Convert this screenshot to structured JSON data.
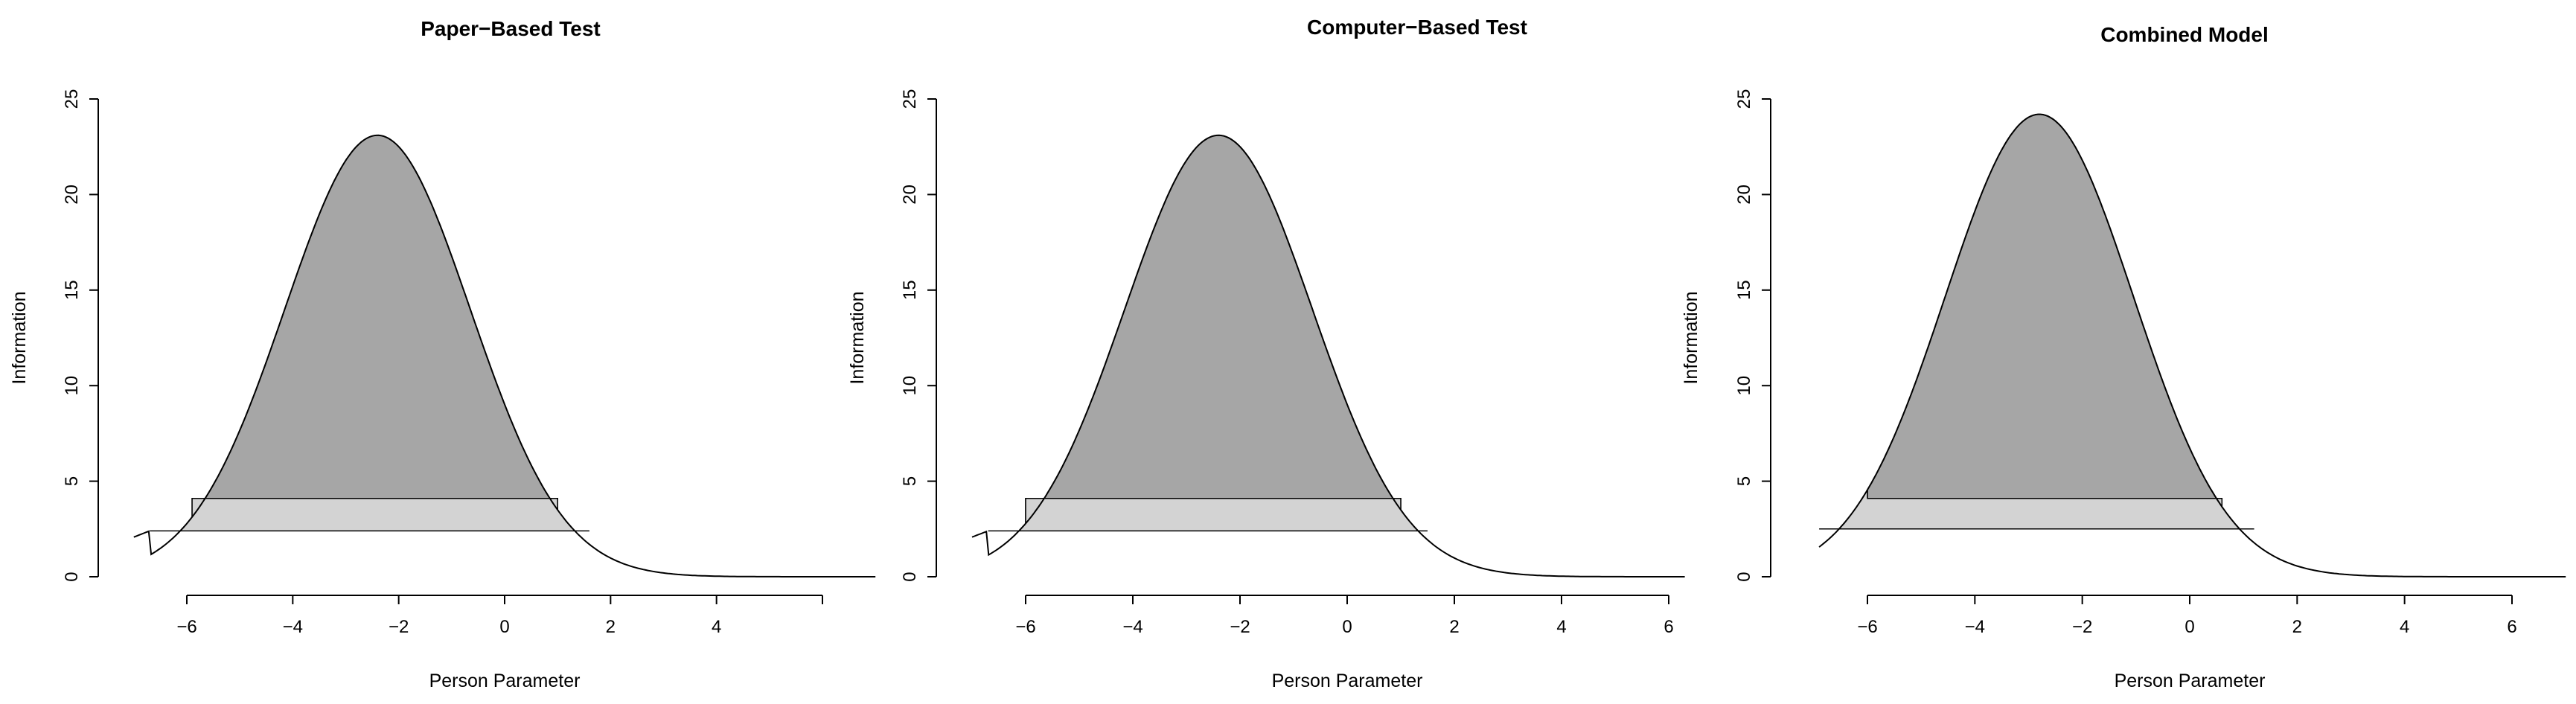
{
  "chart_data": [
    {
      "type": "area",
      "title": "Paper−Based Test",
      "xlabel": "Person Parameter",
      "ylabel": "Information",
      "x_ticks": [
        "−6",
        "−4",
        "−2",
        "0",
        "2",
        "4"
      ],
      "y_ticks": [
        "0",
        "5",
        "10",
        "15",
        "20",
        "25"
      ],
      "xlim": [
        -6,
        6
      ],
      "ylim": [
        0,
        25
      ],
      "peak_x": -2.4,
      "peak_y": 23.1,
      "curve_x_range": [
        -7.0,
        7.0
      ],
      "upper_band": {
        "x_range": [
          -5.9,
          1.0
        ],
        "y": 4.1
      },
      "lower_band": {
        "x_range": [
          -6.7,
          1.6
        ],
        "y": 2.4
      }
    },
    {
      "type": "area",
      "title": "Computer−Based Test",
      "xlabel": "Person Parameter",
      "ylabel": "Information",
      "x_ticks": [
        "−6",
        "−4",
        "−2",
        "0",
        "2",
        "4",
        "6"
      ],
      "y_ticks": [
        "0",
        "5",
        "10",
        "15",
        "20",
        "25"
      ],
      "xlim": [
        -6,
        6
      ],
      "ylim": [
        0,
        25
      ],
      "peak_x": -2.4,
      "peak_y": 23.1,
      "curve_x_range": [
        -7.0,
        6.3
      ],
      "upper_band": {
        "x_range": [
          -6.0,
          1.0
        ],
        "y": 4.1
      },
      "lower_band": {
        "x_range": [
          -6.7,
          1.5
        ],
        "y": 2.4
      }
    },
    {
      "type": "area",
      "title": "Combined Model",
      "xlabel": "Person Parameter",
      "ylabel": "Information",
      "x_ticks": [
        "−6",
        "−4",
        "−2",
        "0",
        "2",
        "4",
        "6"
      ],
      "y_ticks": [
        "0",
        "5",
        "10",
        "15",
        "20",
        "25"
      ],
      "xlim": [
        -6,
        6
      ],
      "ylim": [
        0,
        25
      ],
      "peak_x": -2.8,
      "peak_y": 24.2,
      "curve_x_range": [
        -6.9,
        7.0
      ],
      "upper_band": {
        "x_range": [
          -6.0,
          0.6
        ],
        "y": 4.1
      },
      "lower_band": {
        "x_range": [
          -6.9,
          1.2
        ],
        "y": 2.5
      }
    }
  ]
}
